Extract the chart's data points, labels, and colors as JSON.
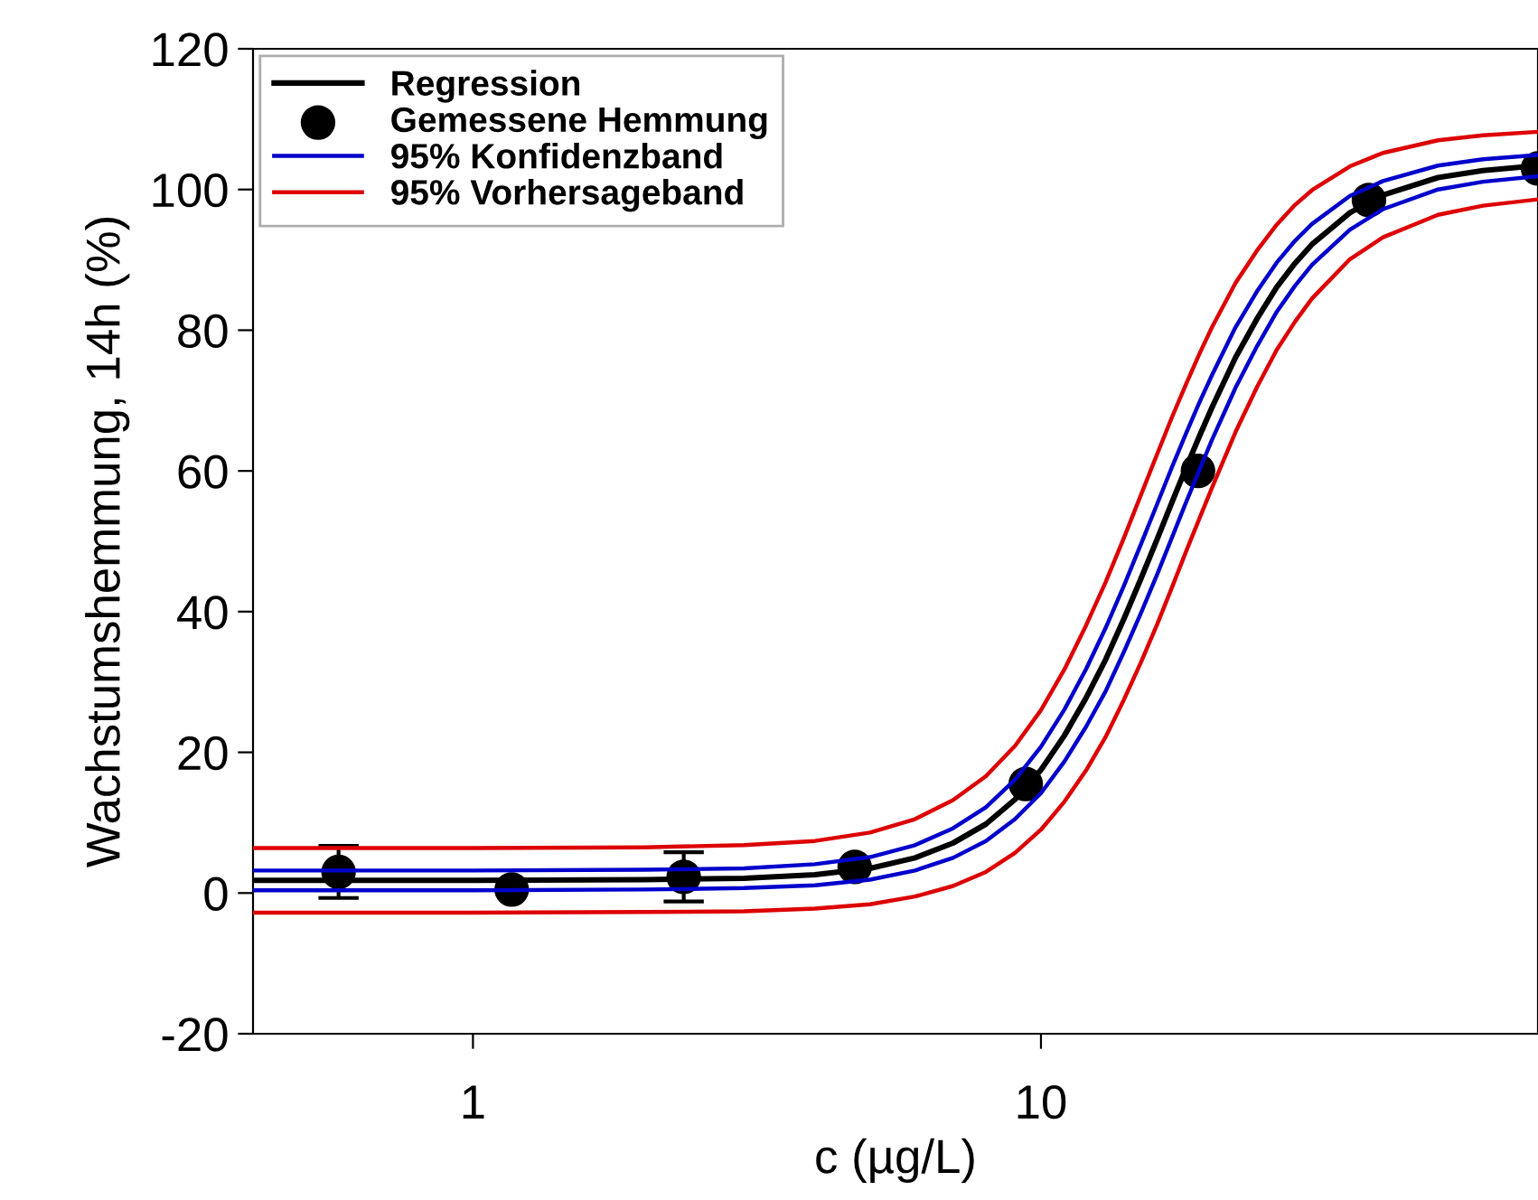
{
  "chart_data": {
    "type": "line",
    "xlabel": "c (µg/L)",
    "ylabel": "Wachstumshemmung, 14h (%)",
    "log": "x",
    "xlim": [
      0.41,
      75
    ],
    "xticks": [
      1,
      10
    ],
    "ylim": [
      -20,
      120
    ],
    "yticks": [
      -20,
      0,
      20,
      40,
      60,
      80,
      100,
      120
    ],
    "grid": false,
    "legend": "top left",
    "series": [
      {
        "name": "Regression",
        "color": "#000000",
        "x": [
          0.41,
          0.6,
          1,
          2,
          3,
          4,
          5,
          6,
          7,
          8,
          9,
          10,
          11,
          12,
          13,
          14,
          15,
          16,
          17,
          18,
          19,
          20,
          22,
          24,
          26,
          28,
          30,
          35,
          40,
          50,
          60,
          75
        ],
        "values": [
          1.8,
          1.8,
          1.8,
          1.9,
          2.1,
          2.6,
          3.5,
          5.0,
          7.1,
          9.8,
          13.3,
          17.5,
          22.4,
          27.7,
          33.2,
          39.0,
          44.7,
          50.2,
          55.5,
          60.4,
          64.9,
          69.0,
          76.1,
          81.6,
          86.1,
          89.5,
          92.2,
          96.7,
          99.2,
          101.7,
          102.7,
          103.4
        ]
      },
      {
        "name": "Gemessene Hemmung",
        "type": "scatter",
        "marker": "circle",
        "color": "#000000",
        "x": [
          0.58,
          1.17,
          2.35,
          4.7,
          9.4,
          18.9,
          37.8,
          75
        ],
        "values": [
          3.0,
          0.5,
          2.3,
          3.7,
          15.5,
          60.0,
          98.5,
          103.0
        ],
        "errors": [
          3.7,
          null,
          3.5,
          null,
          null,
          null,
          null,
          null
        ]
      },
      {
        "name": "95% Konfidenzband",
        "color": "#0000cc",
        "x": [
          0.41,
          0.6,
          1,
          2,
          3,
          4,
          5,
          6,
          7,
          8,
          9,
          10,
          11,
          12,
          13,
          14,
          15,
          16,
          17,
          18,
          19,
          20,
          22,
          24,
          26,
          28,
          30,
          35,
          40,
          50,
          60,
          75
        ],
        "values": [
          3.2,
          3.2,
          3.2,
          3.3,
          3.5,
          4.1,
          5.1,
          6.8,
          9.2,
          12.2,
          16.1,
          20.8,
          26.1,
          31.8,
          37.7,
          43.7,
          49.6,
          55.2,
          60.5,
          65.3,
          69.7,
          73.6,
          80.4,
          85.5,
          89.6,
          92.7,
          95.1,
          99.1,
          101.2,
          103.4,
          104.3,
          104.9
        ]
      },
      {
        "color": "#0000cc",
        "x": [
          0.41,
          0.6,
          1,
          2,
          3,
          4,
          5,
          6,
          7,
          8,
          9,
          10,
          11,
          12,
          13,
          14,
          15,
          16,
          17,
          18,
          19,
          20,
          22,
          24,
          26,
          28,
          30,
          35,
          40,
          50,
          60,
          75
        ],
        "values": [
          0.4,
          0.4,
          0.4,
          0.5,
          0.7,
          1.1,
          1.9,
          3.2,
          5.0,
          7.4,
          10.5,
          14.2,
          18.7,
          23.6,
          28.7,
          34.3,
          39.8,
          45.2,
          50.5,
          55.5,
          60.1,
          64.4,
          71.8,
          77.7,
          82.6,
          86.3,
          89.3,
          94.3,
          97.2,
          100.0,
          101.1,
          101.9
        ]
      },
      {
        "name": "95% Vorhersageband",
        "color": "#dd0000",
        "x": [
          0.41,
          0.6,
          1,
          2,
          3,
          4,
          5,
          6,
          7,
          8,
          9,
          10,
          11,
          12,
          13,
          14,
          15,
          16,
          17,
          18,
          19,
          20,
          22,
          24,
          26,
          28,
          30,
          35,
          40,
          50,
          60,
          75
        ],
        "values": [
          6.4,
          6.4,
          6.4,
          6.5,
          6.8,
          7.4,
          8.6,
          10.5,
          13.2,
          16.6,
          20.9,
          26.0,
          31.8,
          38.0,
          44.2,
          50.5,
          56.6,
          62.3,
          67.6,
          72.3,
          76.6,
          80.4,
          86.7,
          91.3,
          95.0,
          97.8,
          99.9,
          103.3,
          105.2,
          107.0,
          107.7,
          108.2
        ]
      },
      {
        "color": "#dd0000",
        "x": [
          0.41,
          0.6,
          1,
          2,
          3,
          4,
          5,
          6,
          7,
          8,
          9,
          10,
          11,
          12,
          13,
          14,
          15,
          16,
          17,
          18,
          19,
          20,
          22,
          24,
          26,
          28,
          30,
          35,
          40,
          50,
          60,
          75
        ],
        "values": [
          -2.8,
          -2.8,
          -2.8,
          -2.7,
          -2.6,
          -2.2,
          -1.6,
          -0.5,
          1.0,
          3.0,
          5.7,
          9.0,
          13.0,
          17.4,
          22.2,
          27.5,
          32.8,
          38.1,
          43.4,
          48.5,
          53.2,
          57.6,
          65.5,
          71.9,
          77.2,
          81.2,
          84.5,
          90.1,
          93.2,
          96.4,
          97.7,
          98.6
        ]
      }
    ]
  }
}
